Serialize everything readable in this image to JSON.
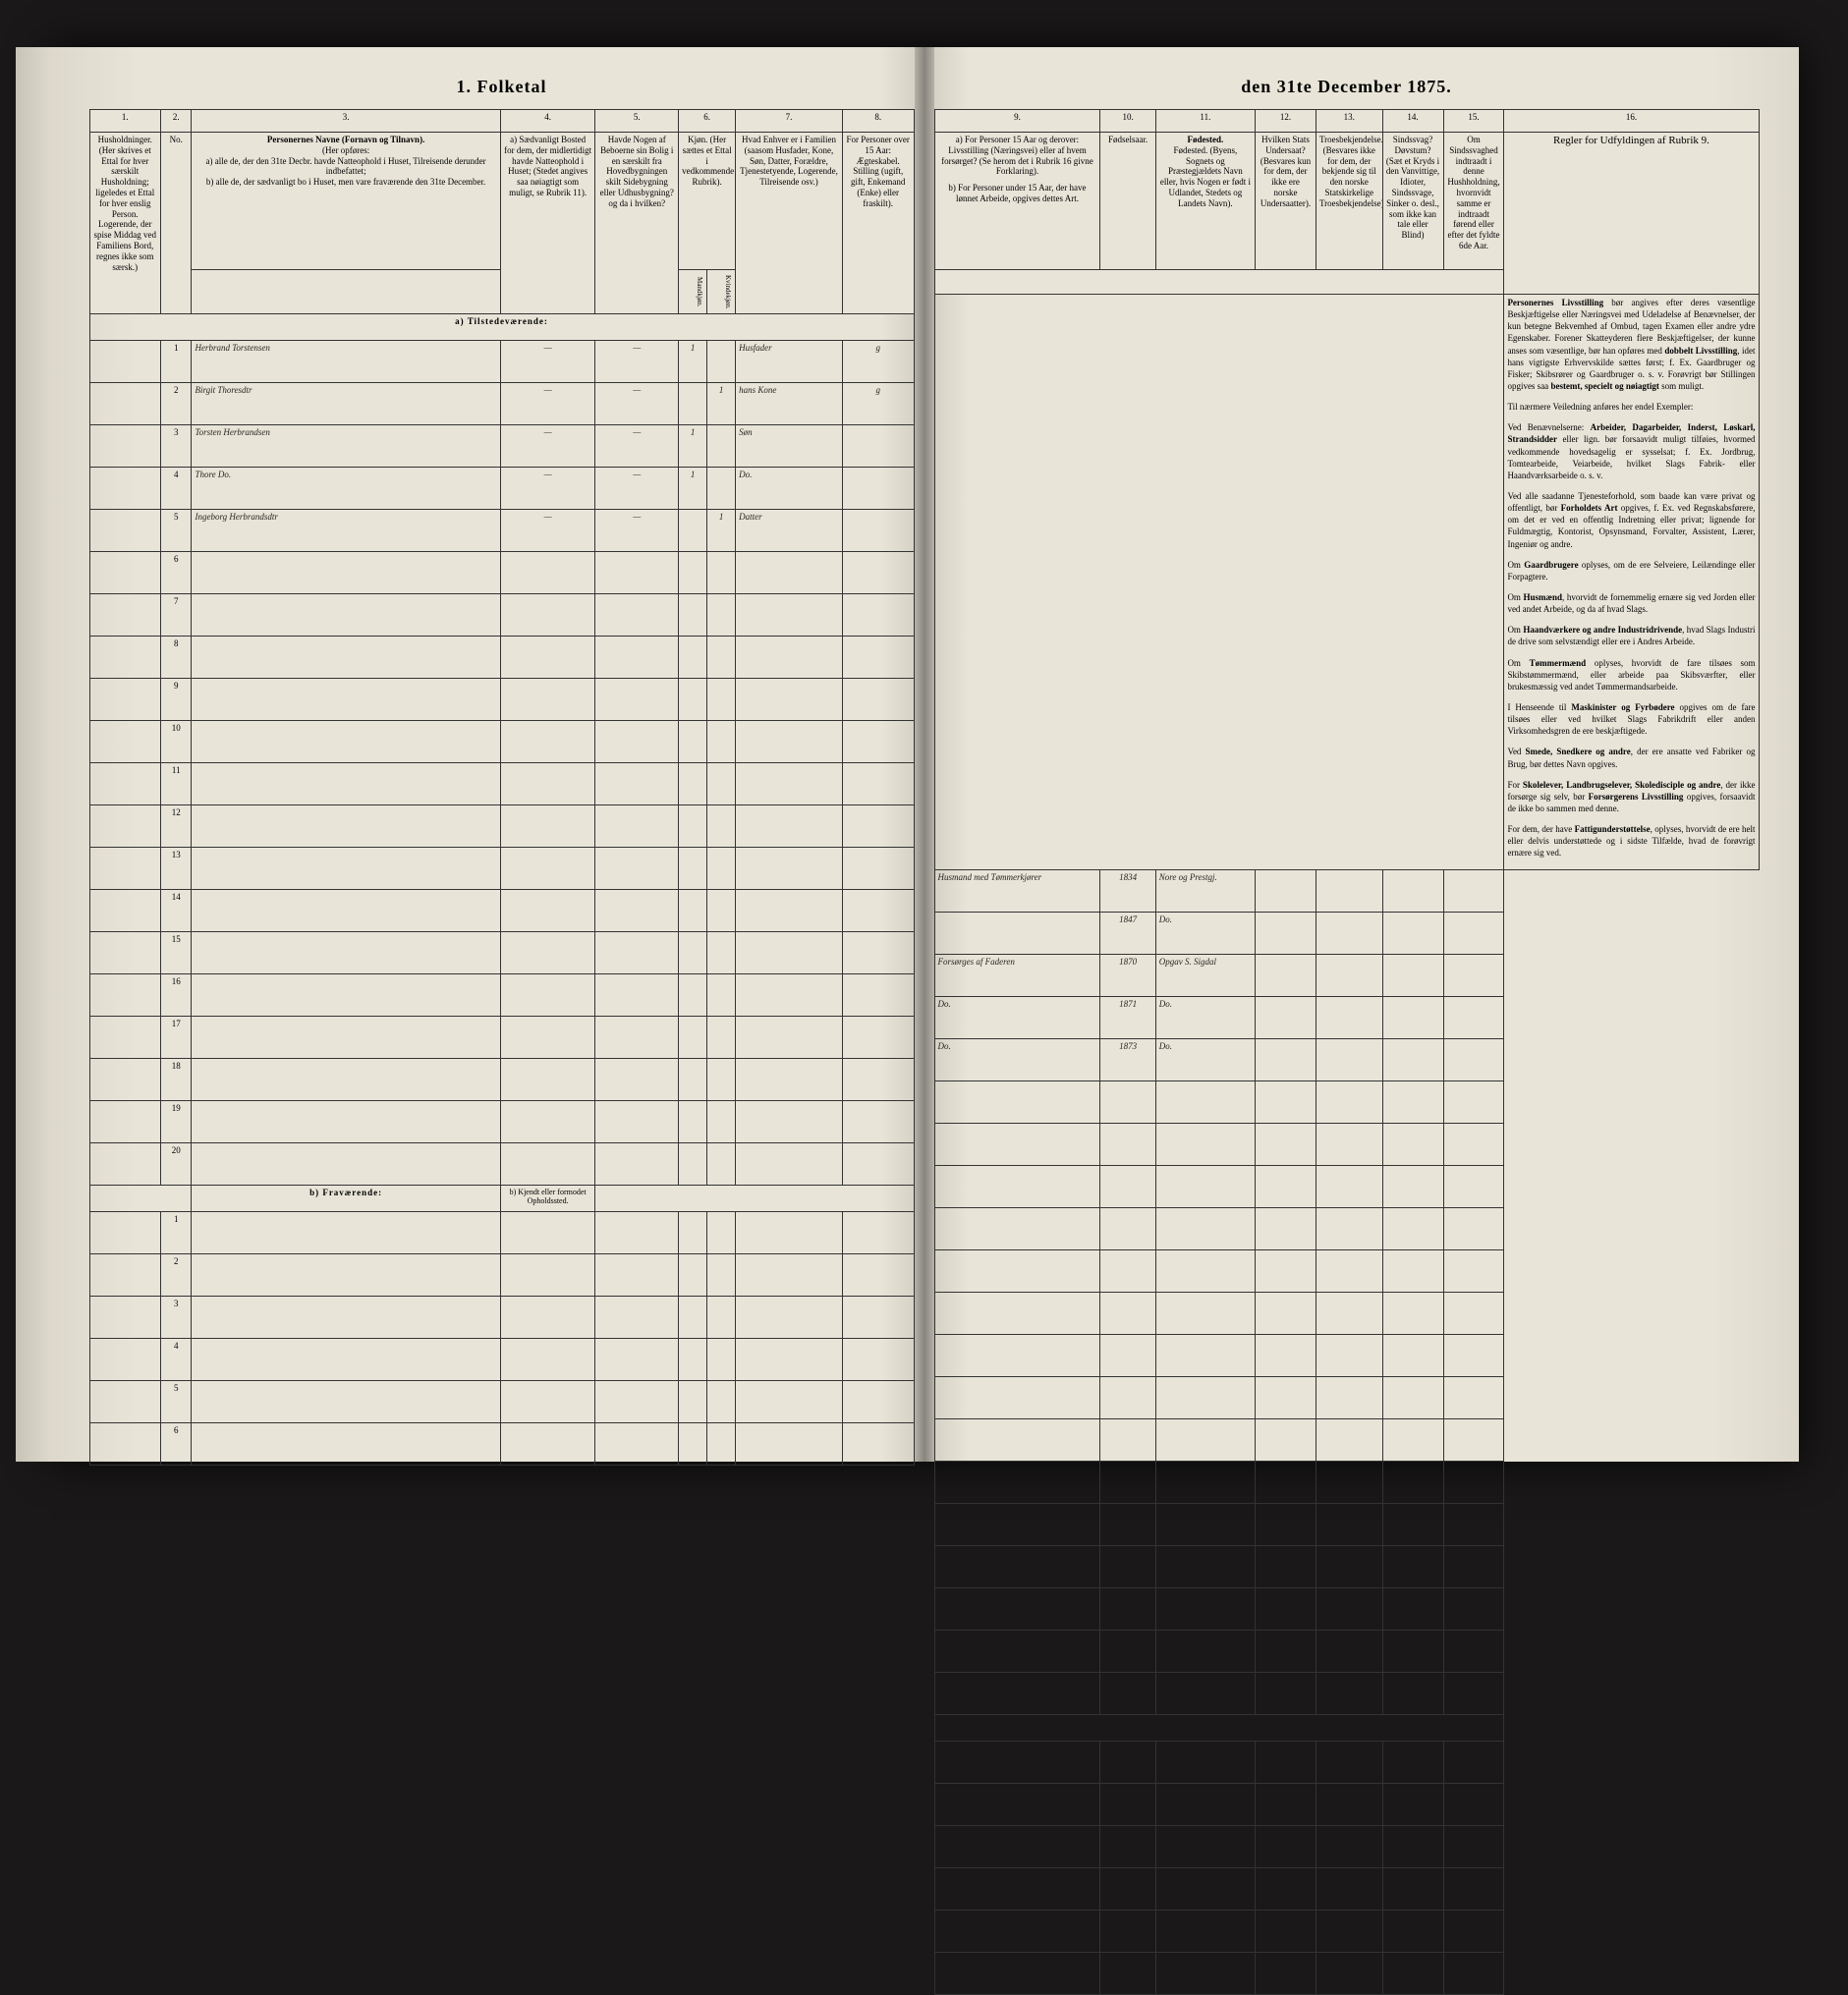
{
  "title_left": "1. Folketal",
  "title_right": "den 31te December 1875.",
  "columns_left": {
    "c1": "1.",
    "c2": "2.",
    "c3": "3.",
    "c4": "4.",
    "c5": "5.",
    "c6": "6.",
    "c7": "7.",
    "c8": "8."
  },
  "columns_right": {
    "c9": "9.",
    "c10": "10.",
    "c11": "11.",
    "c12": "12.",
    "c13": "13.",
    "c14": "14.",
    "c15": "15.",
    "c16": "16."
  },
  "header_left": {
    "c1": "Husholdninger. (Her skrives et Ettal for hver særskilt Husholdning; ligeledes et Ettal for hver enslig Person. Logerende, der spise Middag ved Familiens Bord, regnes ikke som særsk.)",
    "c2": "No.",
    "c3_title": "Personernes Navne (Fornavn og Tilnavn).",
    "c3_sub": "(Her opføres:",
    "c3_a": "a) alle de, der den 31te Decbr. havde Natteophold i Huset, Tilreisende derunder indbefattet;",
    "c3_b": "b) alle de, der sædvanligt bo i Huset, men vare fraværende den 31te December.",
    "c4": "a) Sædvanligt Bosted for dem, der midlertidigt havde Natteophold i Huset; (Stedet angives saa nøiagtigt som muligt, se Rubrik 11).",
    "c5": "Havde Nogen af Beboerne sin Bolig i en særskilt fra Hovedbygningen skilt Sidebygning eller Udhusbygning? og da i hvilken?",
    "c6_title": "Kjøn. (Her sættes et Ettal i vedkommende Rubrik).",
    "c6_m": "Mandkjøn.",
    "c6_k": "Kvindekjøn.",
    "c7": "Hvad Enhver er i Familien (saasom Husfader, Kone, Søn, Datter, Forældre, Tjenestetyende, Logerende, Tilreisende osv.)",
    "c8": "For Personer over 15 Aar: Ægteskabel. Stilling (ugift, gift, Enkemand (Enke) eller fraskilt)."
  },
  "header_right": {
    "c9_a": "a) For Personer 15 Aar og derover: Livsstilling (Næringsvei) eller af hvem forsørget? (Se herom det i Rubrik 16 givne Forklaring).",
    "c9_b": "b) For Personer under 15 Aar, der have lønnet Arbeide, opgives dettes Art.",
    "c10": "Fødselsaar.",
    "c11": "Fødested. (Byens, Sognets og Præstegjældets Navn eller, hvis Nogen er født i Udlandet, Stedets og Landets Navn).",
    "c12": "Hvilken Stats Undersaat? (Besvares kun for dem, der ikke ere norske Undersaatter).",
    "c13": "Troesbekjendelse. (Besvares ikke for dem, der bekjende sig til den norske Statskirkelige Troesbekjendelse).",
    "c14": "Sindssvag? Døvstum? (Sæt et Kryds i den Vanvittige, Idioter, Sindssvage, Sinker o. desl., som ikke kan tale eller Blind)",
    "c15": "Om Sindssvaghed indtraadt i denne Hushholdning, hvornvidt samme er indtraadt førend eller efter det fyldte 6de Aar.",
    "c16_title": "Regler for Udfyldingen af Rubrik 9."
  },
  "section_a": "a) Tilstedeværende:",
  "section_b": "b) Fraværende:",
  "section_b_col4": "b) Kjendt eller formodet Opholdssted.",
  "rows": [
    {
      "n": "1",
      "name": "Herbrand Torstensen",
      "c4": "—",
      "c5": "—",
      "m": "1",
      "k": "",
      "fam": "Husfader",
      "egt": "g",
      "liv": "Husmand med Tømmerkjører",
      "aar": "1834",
      "sted": "Nore og Prestgj."
    },
    {
      "n": "2",
      "name": "Birgit Thoresdtr",
      "c4": "—",
      "c5": "—",
      "m": "",
      "k": "1",
      "fam": "hans Kone",
      "egt": "g",
      "liv": "",
      "aar": "1847",
      "sted": "Do."
    },
    {
      "n": "3",
      "name": "Torsten Herbrandsen",
      "c4": "—",
      "c5": "—",
      "m": "1",
      "k": "",
      "fam": "Søn",
      "egt": "",
      "liv": "Forsørges af Faderen",
      "aar": "1870",
      "sted": "Opgav S. Sigdal"
    },
    {
      "n": "4",
      "name": "Thore     Do.",
      "c4": "—",
      "c5": "—",
      "m": "1",
      "k": "",
      "fam": "Do.",
      "egt": "",
      "liv": "Do.",
      "aar": "1871",
      "sted": "Do."
    },
    {
      "n": "5",
      "name": "Ingeborg Herbrandsdtr",
      "c4": "—",
      "c5": "—",
      "m": "",
      "k": "1",
      "fam": "Datter",
      "egt": "",
      "liv": "Do.",
      "aar": "1873",
      "sted": "Do."
    }
  ],
  "empty_a": [
    "6",
    "7",
    "8",
    "9",
    "10",
    "11",
    "12",
    "13",
    "14",
    "15",
    "16",
    "17",
    "18",
    "19",
    "20"
  ],
  "empty_b": [
    "1",
    "2",
    "3",
    "4",
    "5",
    "6"
  ],
  "instructions": {
    "title_bold": "Personernes Livsstilling",
    "p1": " bør angives efter deres væsentlige Beskjæftigelse eller Næringsvei med Udeladelse af Benævnelser, der kun betegne Bekvemhed af Ombud, tagen Examen eller andre ydre Egenskaber. Forener Skatteyderen flere Beskjæftigelser, der kunne anses som væsentlige, bør han opføres med ",
    "p1_bold": "dobbelt Livsstilling",
    "p1_end": ", idet hans vigtigste Erhvervskilde sættes først; f. Ex. Gaardbruger og Fisker; Skibsrører og Gaardbruger o. s. v. Forøvrigt bør Stillingen opgives saa ",
    "p1_bold2": "bestemt, specielt og nøiagtigt",
    "p1_end2": " som muligt.",
    "p2": "Til nærmere Veiledning anføres her endel Exempler:",
    "p3": "Ved Benævnelserne: ",
    "p3_bold": "Arbeider, Dagarbeider, Inderst, Løskarl, Strandsidder",
    "p3_end": " eller lign. bør forsaavidt muligt tilføies, hvormed vedkommende hovedsagelig er sysselsat; f. Ex. Jordbrug, Tomtearbeide, Veiarbeide, hvilket Slags Fabrik- eller Haandværksarbeide o. s. v.",
    "p4": "Ved alle saadanne Tjenesteforhold, som baade kan være privat og offentligt, bør ",
    "p4_bold": "Forholdets Art",
    "p4_end": " opgives, f. Ex. ved Regnskabsførere, om det er ved en offentlig Indretning eller privat; lignende for Fuldmægtig, Kontorist, Opsynsmand, Forvalter, Assistent, Lærer, Ingeniør og andre.",
    "p5": "Om ",
    "p5_bold": "Gaardbrugere",
    "p5_end": " oplyses, om de ere Selveiere, Leilændinge eller Forpagtere.",
    "p6": "Om ",
    "p6_bold": "Husmænd",
    "p6_end": ", hvorvidt de fornemmelig ernære sig ved Jorden eller ved andet Arbeide, og da af hvad Slags.",
    "p7": "Om ",
    "p7_bold": "Haandværkere og andre Industridrivende",
    "p7_end": ", hvad Slags Industri de drive som selvstændigt eller ere i Andres Arbeide.",
    "p8": "Om ",
    "p8_bold": "Tømmermænd",
    "p8_end": " oplyses, hvorvidt de fare tilsøes som Skibstømmermænd, eller arbeide paa Skibsværfter, eller brukesmæssig ved andet Tømmermandsarbeide.",
    "p9": "I Henseende til ",
    "p9_bold": "Maskinister og Fyrbødere",
    "p9_end": " opgives om de fare tilsøes eller ved hvilket Slags Fabrikdrift eller anden Virksomhedsgren de ere beskjæftigede.",
    "p10": "Ved ",
    "p10_bold": "Smede, Snedkere og andre",
    "p10_end": ", der ere ansatte ved Fabriker og Brug, bør dettes Navn opgives.",
    "p11": "For ",
    "p11_bold": "Skolelever, Landbrugselever, Skoledisciple og andre",
    "p11_end": ", der ikke forsørge sig selv, bør ",
    "p11_bold2": "Forsørgerens Livsstilling",
    "p11_end2": " opgives, forsaavidt de ikke bo sammen med denne.",
    "p12": "For dem, der have ",
    "p12_bold": "Fattigunderstøttelse",
    "p12_end": ", oplyses, hvorvidt de ere helt eller delvis understøttede og i sidste Tilfælde, hvad de forøvrigt ernære sig ved."
  }
}
